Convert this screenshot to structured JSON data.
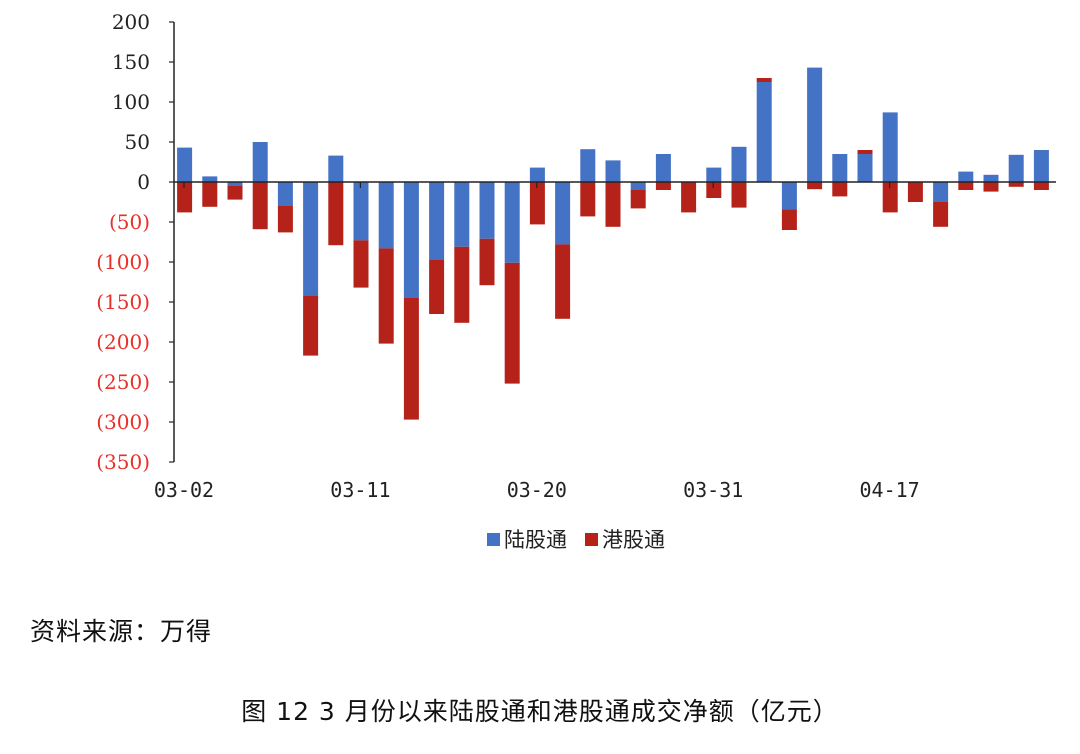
{
  "chart_data": {
    "type": "bar",
    "stacked": true,
    "ylim": [
      -350,
      200
    ],
    "yticks": [
      200,
      150,
      100,
      50,
      0,
      -50,
      -100,
      -150,
      -200,
      -250,
      -300,
      -350
    ],
    "ytick_labels": [
      "200",
      "150",
      "100",
      "50",
      "0",
      "(50)",
      "(100)",
      "(150)",
      "(200)",
      "(250)",
      "(300)",
      "(350)"
    ],
    "xtick_labels": [
      {
        "index": 0,
        "label": "03-02"
      },
      {
        "index": 7,
        "label": "03-11"
      },
      {
        "index": 14,
        "label": "03-20"
      },
      {
        "index": 21,
        "label": "03-31"
      },
      {
        "index": 28,
        "label": "04-17"
      }
    ],
    "n_categories": 35,
    "series": [
      {
        "name": "陆股通",
        "color": "#4472c4",
        "values": [
          43,
          7,
          -5,
          50,
          -30,
          -142,
          33,
          -73,
          -83,
          -145,
          -97,
          -81,
          -71,
          -101,
          18,
          -78,
          41,
          27,
          -10,
          35,
          0,
          18,
          44,
          125,
          -34,
          143,
          35,
          35,
          87,
          0,
          -25,
          13,
          9,
          34,
          40
        ]
      },
      {
        "name": "港股通",
        "color": "#b52219",
        "values": [
          -38,
          -31,
          -17,
          -59,
          -33,
          -75,
          -79,
          -59,
          -119,
          -152,
          -68,
          -95,
          -58,
          -151,
          -53,
          -93,
          -43,
          -56,
          -23,
          -10,
          -38,
          -20,
          -32,
          5,
          -26,
          -9,
          -18,
          5,
          -38,
          -25,
          -31,
          -10,
          -12,
          -6,
          -10
        ]
      }
    ]
  },
  "legend": {
    "item1": "陆股通",
    "item2": "港股通"
  },
  "source": "资料来源：万得",
  "caption": "图 12 3 月份以来陆股通和港股通成交净额（亿元）"
}
